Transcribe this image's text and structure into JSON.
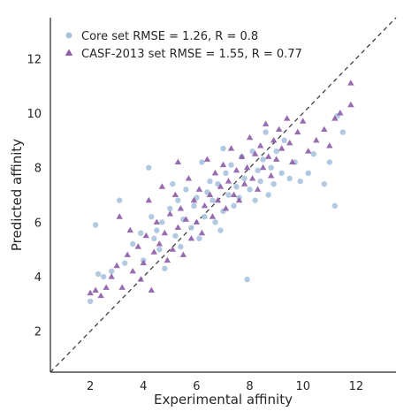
{
  "chart_data": {
    "type": "scatter",
    "xlabel": "Experimental affinity",
    "ylabel": "Predicted affinity",
    "xlim": [
      0.5,
      13.5
    ],
    "ylim": [
      0.5,
      13.5
    ],
    "xticks": [
      2,
      4,
      6,
      8,
      10,
      12
    ],
    "yticks": [
      2,
      4,
      6,
      8,
      10,
      12
    ],
    "grid": false,
    "legend_position": "top-left",
    "diagonal_line": true,
    "series": [
      {
        "name": "Core set RMSE = 1.26, R = 0.8",
        "marker": "circle",
        "color": "#a8c4de",
        "points": [
          [
            2.0,
            3.1
          ],
          [
            2.2,
            5.9
          ],
          [
            2.3,
            4.1
          ],
          [
            2.5,
            4.0
          ],
          [
            2.8,
            4.2
          ],
          [
            3.1,
            6.8
          ],
          [
            3.3,
            4.5
          ],
          [
            3.6,
            5.2
          ],
          [
            3.9,
            5.6
          ],
          [
            4.0,
            4.6
          ],
          [
            4.2,
            8.0
          ],
          [
            4.3,
            6.2
          ],
          [
            4.5,
            5.7
          ],
          [
            4.6,
            5.0
          ],
          [
            4.7,
            6.0
          ],
          [
            4.8,
            4.3
          ],
          [
            5.0,
            6.5
          ],
          [
            5.2,
            5.5
          ],
          [
            5.3,
            6.8
          ],
          [
            5.4,
            5.1
          ],
          [
            5.5,
            6.1
          ],
          [
            5.6,
            7.2
          ],
          [
            5.8,
            5.8
          ],
          [
            5.9,
            6.6
          ],
          [
            6.0,
            6.9
          ],
          [
            6.1,
            5.4
          ],
          [
            6.3,
            6.2
          ],
          [
            6.4,
            7.1
          ],
          [
            6.5,
            7.5
          ],
          [
            6.6,
            6.8
          ],
          [
            6.7,
            6.0
          ],
          [
            6.8,
            7.4
          ],
          [
            6.9,
            5.7
          ],
          [
            7.0,
            6.4
          ],
          [
            7.1,
            7.8
          ],
          [
            7.2,
            7.0
          ],
          [
            7.3,
            8.1
          ],
          [
            7.4,
            6.6
          ],
          [
            7.5,
            7.3
          ],
          [
            7.6,
            6.9
          ],
          [
            7.7,
            8.4
          ],
          [
            7.8,
            7.6
          ],
          [
            7.9,
            3.9
          ],
          [
            8.0,
            7.2
          ],
          [
            8.1,
            8.6
          ],
          [
            8.2,
            6.8
          ],
          [
            8.3,
            7.9
          ],
          [
            8.4,
            7.5
          ],
          [
            8.5,
            8.3
          ],
          [
            8.6,
            9.3
          ],
          [
            8.7,
            7.0
          ],
          [
            8.8,
            8.0
          ],
          [
            8.9,
            7.4
          ],
          [
            9.0,
            8.6
          ],
          [
            9.2,
            7.8
          ],
          [
            9.3,
            9.0
          ],
          [
            9.5,
            7.6
          ],
          [
            9.7,
            8.2
          ],
          [
            9.9,
            7.5
          ],
          [
            10.2,
            7.8
          ],
          [
            10.4,
            8.5
          ],
          [
            10.8,
            7.4
          ],
          [
            11.0,
            8.2
          ],
          [
            11.2,
            6.6
          ],
          [
            11.3,
            9.9
          ],
          [
            11.5,
            9.3
          ],
          [
            6.2,
            8.2
          ],
          [
            5.1,
            7.4
          ],
          [
            4.4,
            5.4
          ],
          [
            7.0,
            8.7
          ]
        ]
      },
      {
        "name": "CASF-2013 set RMSE = 1.55, R = 0.77",
        "marker": "triangle",
        "color": "#8e5ba8",
        "points": [
          [
            2.0,
            3.4
          ],
          [
            2.2,
            3.5
          ],
          [
            2.4,
            3.3
          ],
          [
            2.6,
            3.6
          ],
          [
            2.8,
            4.0
          ],
          [
            3.0,
            4.4
          ],
          [
            3.2,
            3.6
          ],
          [
            3.4,
            4.8
          ],
          [
            3.5,
            5.7
          ],
          [
            3.6,
            4.2
          ],
          [
            3.8,
            5.1
          ],
          [
            3.9,
            3.9
          ],
          [
            4.0,
            4.5
          ],
          [
            4.1,
            5.5
          ],
          [
            4.2,
            6.8
          ],
          [
            4.3,
            3.5
          ],
          [
            4.4,
            4.9
          ],
          [
            4.5,
            6.0
          ],
          [
            4.6,
            5.2
          ],
          [
            4.7,
            7.3
          ],
          [
            4.8,
            5.6
          ],
          [
            4.9,
            4.6
          ],
          [
            5.0,
            6.3
          ],
          [
            5.1,
            5.0
          ],
          [
            5.2,
            7.0
          ],
          [
            5.3,
            5.8
          ],
          [
            5.4,
            6.5
          ],
          [
            5.5,
            4.8
          ],
          [
            5.6,
            6.1
          ],
          [
            5.7,
            7.6
          ],
          [
            5.8,
            5.4
          ],
          [
            5.9,
            6.8
          ],
          [
            6.0,
            6.0
          ],
          [
            6.1,
            7.2
          ],
          [
            6.2,
            5.6
          ],
          [
            6.3,
            6.6
          ],
          [
            6.4,
            8.3
          ],
          [
            6.5,
            7.0
          ],
          [
            6.6,
            6.2
          ],
          [
            6.7,
            7.8
          ],
          [
            6.8,
            6.8
          ],
          [
            6.9,
            7.3
          ],
          [
            7.0,
            8.1
          ],
          [
            7.1,
            6.5
          ],
          [
            7.2,
            7.5
          ],
          [
            7.3,
            8.7
          ],
          [
            7.4,
            7.0
          ],
          [
            7.5,
            7.9
          ],
          [
            7.6,
            6.8
          ],
          [
            7.7,
            8.4
          ],
          [
            7.8,
            7.4
          ],
          [
            7.9,
            8.0
          ],
          [
            8.0,
            9.1
          ],
          [
            8.1,
            7.6
          ],
          [
            8.2,
            8.5
          ],
          [
            8.3,
            7.2
          ],
          [
            8.4,
            8.8
          ],
          [
            8.5,
            8.0
          ],
          [
            8.6,
            9.6
          ],
          [
            8.7,
            8.4
          ],
          [
            8.8,
            7.7
          ],
          [
            8.9,
            9.0
          ],
          [
            9.0,
            8.3
          ],
          [
            9.1,
            9.4
          ],
          [
            9.2,
            8.7
          ],
          [
            9.4,
            9.8
          ],
          [
            9.5,
            8.9
          ],
          [
            9.6,
            8.2
          ],
          [
            9.8,
            9.3
          ],
          [
            10.0,
            9.7
          ],
          [
            10.2,
            8.6
          ],
          [
            10.5,
            9.0
          ],
          [
            10.8,
            9.4
          ],
          [
            11.0,
            8.8
          ],
          [
            11.2,
            9.8
          ],
          [
            11.4,
            10.0
          ],
          [
            11.8,
            11.1
          ],
          [
            11.8,
            10.3
          ],
          [
            3.1,
            6.2
          ],
          [
            5.3,
            8.2
          ]
        ]
      }
    ]
  }
}
